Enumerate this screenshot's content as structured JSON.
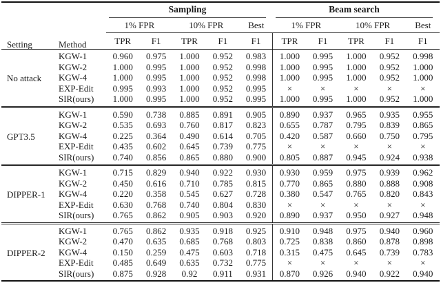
{
  "table": {
    "headers": {
      "setting": "Setting",
      "method": "Method",
      "groups": [
        {
          "label": "Sampling"
        },
        {
          "label": "Beam search"
        }
      ],
      "subgroups": [
        "1% FPR",
        "10% FPR",
        "Best"
      ],
      "metric_cols": [
        "TPR",
        "F1",
        "TPR",
        "F1",
        "F1"
      ]
    },
    "missing_marker": "×",
    "blocks": [
      {
        "setting": "No attack",
        "rows": [
          {
            "method": "KGW-1",
            "sampling": [
              "0.960",
              "0.975",
              "1.000",
              "0.952",
              "0.983"
            ],
            "beam": [
              "1.000",
              "0.995",
              "1.000",
              "0.952",
              "0.998"
            ]
          },
          {
            "method": "KGW-2",
            "sampling": [
              "1.000",
              "0.995",
              "1.000",
              "0.952",
              "0.998"
            ],
            "beam": [
              "1.000",
              "0.995",
              "1.000",
              "0.952",
              "1.000"
            ]
          },
          {
            "method": "KGW-4",
            "sampling": [
              "1.000",
              "0.995",
              "1.000",
              "0.952",
              "0.998"
            ],
            "beam": [
              "1.000",
              "0.995",
              "1.000",
              "0.952",
              "1.000"
            ]
          },
          {
            "method": "EXP-Edit",
            "sampling": [
              "0.995",
              "0.993",
              "1.000",
              "0.952",
              "0.995"
            ],
            "beam": [
              "×",
              "×",
              "×",
              "×",
              "×"
            ]
          },
          {
            "method": "SIR(ours)",
            "sampling": [
              "1.000",
              "0.995",
              "1.000",
              "0.952",
              "0.995"
            ],
            "beam": [
              "1.000",
              "0.995",
              "1.000",
              "0.952",
              "1.000"
            ]
          }
        ]
      },
      {
        "setting": "GPT3.5",
        "rows": [
          {
            "method": "KGW-1",
            "sampling": [
              "0.590",
              "0.738",
              "0.885",
              "0.891",
              "0.905"
            ],
            "beam": [
              "0.890",
              "0.937",
              "0.965",
              "0.935",
              "0.955"
            ]
          },
          {
            "method": "KGW-2",
            "sampling": [
              "0.535",
              "0.693",
              "0.760",
              "0.817",
              "0.823"
            ],
            "beam": [
              "0.655",
              "0.787",
              "0.795",
              "0.839",
              "0.865"
            ]
          },
          {
            "method": "KGW-4",
            "sampling": [
              "0.225",
              "0.364",
              "0.490",
              "0.614",
              "0.705"
            ],
            "beam": [
              "0.420",
              "0.587",
              "0.660",
              "0.750",
              "0.795"
            ]
          },
          {
            "method": "EXP-Edit",
            "sampling": [
              "0.435",
              "0.602",
              "0.645",
              "0.739",
              "0.775"
            ],
            "beam": [
              "×",
              "×",
              "×",
              "×",
              "×"
            ]
          },
          {
            "method": "SIR(ours)",
            "sampling": [
              "0.740",
              "0.856",
              "0.865",
              "0.880",
              "0.900"
            ],
            "beam": [
              "0.805",
              "0.887",
              "0.945",
              "0.924",
              "0.938"
            ]
          }
        ]
      },
      {
        "setting": "DIPPER-1",
        "rows": [
          {
            "method": "KGW-1",
            "sampling": [
              "0.715",
              "0.829",
              "0.940",
              "0.922",
              "0.930"
            ],
            "beam": [
              "0.930",
              "0.959",
              "0.975",
              "0.939",
              "0.962"
            ]
          },
          {
            "method": "KGW-2",
            "sampling": [
              "0.450",
              "0.616",
              "0.710",
              "0.785",
              "0.815"
            ],
            "beam": [
              "0.770",
              "0.865",
              "0.880",
              "0.888",
              "0.908"
            ]
          },
          {
            "method": "KGW-4",
            "sampling": [
              "0.220",
              "0.358",
              "0.545",
              "0.627",
              "0.728"
            ],
            "beam": [
              "0.380",
              "0.547",
              "0.765",
              "0.820",
              "0.843"
            ]
          },
          {
            "method": "EXP-Edit",
            "sampling": [
              "0.630",
              "0.768",
              "0.740",
              "0.804",
              "0.830"
            ],
            "beam": [
              "×",
              "×",
              "×",
              "×",
              "×"
            ]
          },
          {
            "method": "SIR(ours)",
            "sampling": [
              "0.765",
              "0.862",
              "0.905",
              "0.903",
              "0.920"
            ],
            "beam": [
              "0.890",
              "0.937",
              "0.950",
              "0.927",
              "0.948"
            ]
          }
        ]
      },
      {
        "setting": "DIPPER-2",
        "rows": [
          {
            "method": "KGW-1",
            "sampling": [
              "0.765",
              "0.862",
              "0.935",
              "0.918",
              "0.925"
            ],
            "beam": [
              "0.910",
              "0.948",
              "0.975",
              "0.940",
              "0.960"
            ]
          },
          {
            "method": "KGW-2",
            "sampling": [
              "0.470",
              "0.635",
              "0.685",
              "0.768",
              "0.803"
            ],
            "beam": [
              "0.725",
              "0.838",
              "0.860",
              "0.878",
              "0.898"
            ]
          },
          {
            "method": "KGW-4",
            "sampling": [
              "0.150",
              "0.259",
              "0.475",
              "0.603",
              "0.718"
            ],
            "beam": [
              "0.315",
              "0.475",
              "0.645",
              "0.739",
              "0.783"
            ]
          },
          {
            "method": "EXP-Edit",
            "sampling": [
              "0.485",
              "0.649",
              "0.635",
              "0.732",
              "0.775"
            ],
            "beam": [
              "×",
              "×",
              "×",
              "×",
              "×"
            ]
          },
          {
            "method": "SIR(ours)",
            "sampling": [
              "0.875",
              "0.928",
              "0.92",
              "0.911",
              "0.931"
            ],
            "beam": [
              "0.870",
              "0.926",
              "0.940",
              "0.922",
              "0.940"
            ]
          }
        ]
      }
    ]
  }
}
